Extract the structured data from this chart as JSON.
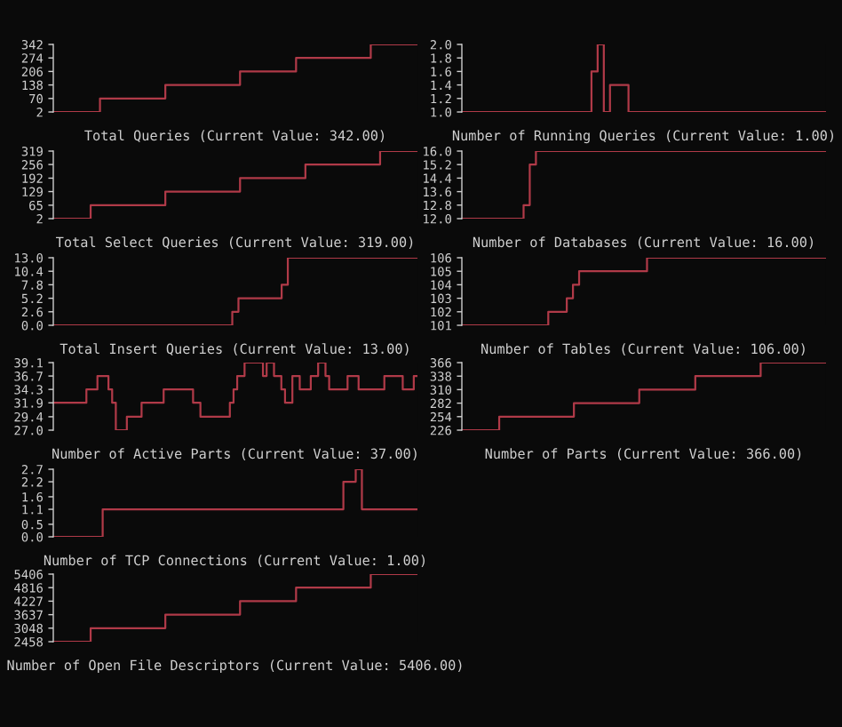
{
  "chart_data": [
    {
      "type": "step",
      "title": "Total Queries (Current Value: 342.00)",
      "color": "#b03a48",
      "tick_labels": "y",
      "ylim": [
        2,
        342
      ],
      "yticks": [
        2,
        70,
        138,
        206,
        274,
        342
      ],
      "categories": [
        null,
        null,
        null,
        null,
        null,
        null,
        null,
        null,
        null,
        null,
        null,
        null,
        null,
        null,
        null,
        null,
        null,
        null,
        null,
        null,
        null,
        null,
        null,
        null,
        null,
        null,
        null,
        null,
        null,
        null,
        null,
        null,
        null,
        null,
        null,
        null,
        null,
        null,
        null,
        null
      ],
      "values": [
        2,
        2,
        2,
        2,
        2,
        70,
        70,
        70,
        70,
        70,
        70,
        70,
        138,
        138,
        138,
        138,
        138,
        138,
        138,
        138,
        206,
        206,
        206,
        206,
        206,
        206,
        274,
        274,
        274,
        274,
        274,
        274,
        274,
        274,
        342,
        342,
        342,
        342,
        342,
        342
      ]
    },
    {
      "type": "step",
      "title": "Number of Running Queries (Current Value: 1.00)",
      "color": "#b03a48",
      "tick_labels": "y",
      "ylim": [
        1,
        2
      ],
      "yticks": [
        {
          "value": 1,
          "label": "1.0"
        },
        {
          "value": 1.2,
          "label": "1.2"
        },
        {
          "value": 1.4,
          "label": "1.4"
        },
        {
          "value": 1.6,
          "label": "1.6"
        },
        {
          "value": 1.8,
          "label": "1.8"
        },
        {
          "value": 2,
          "label": "2.0"
        }
      ],
      "categories": [
        null,
        null,
        null,
        null,
        null,
        null,
        null,
        null,
        null,
        null,
        null,
        null,
        null,
        null,
        null,
        null,
        null,
        null,
        null,
        null,
        null,
        null,
        null,
        null,
        null,
        null,
        null,
        null,
        null,
        null,
        null,
        null,
        null,
        null,
        null,
        null,
        null,
        null,
        null,
        null,
        null,
        null,
        null,
        null,
        null,
        null,
        null,
        null,
        null,
        null,
        null,
        null,
        null,
        null,
        null,
        null,
        null,
        null,
        null,
        null
      ],
      "values": [
        1,
        1,
        1,
        1,
        1,
        1,
        1,
        1,
        1,
        1,
        1,
        1,
        1,
        1,
        1,
        1,
        1,
        1,
        1,
        1,
        1,
        1.6,
        2,
        1,
        1.4,
        1.4,
        1.4,
        1,
        1,
        1,
        1,
        1,
        1,
        1,
        1,
        1,
        1,
        1,
        1,
        1,
        1,
        1,
        1,
        1,
        1,
        1,
        1,
        1,
        1,
        1,
        1,
        1,
        1,
        1,
        1,
        1,
        1,
        1,
        1,
        1
      ]
    },
    {
      "type": "step",
      "title": "Total Select Queries (Current Value: 319.00)",
      "color": "#b03a48",
      "tick_labels": "y",
      "ylim": [
        2,
        319
      ],
      "yticks": [
        2,
        65,
        129,
        192,
        256,
        319
      ],
      "categories": [
        null,
        null,
        null,
        null,
        null,
        null,
        null,
        null,
        null,
        null,
        null,
        null,
        null,
        null,
        null,
        null,
        null,
        null,
        null,
        null,
        null,
        null,
        null,
        null,
        null,
        null,
        null,
        null,
        null,
        null,
        null,
        null,
        null,
        null,
        null,
        null,
        null,
        null,
        null,
        null
      ],
      "values": [
        2,
        2,
        2,
        2,
        65,
        65,
        65,
        65,
        65,
        65,
        65,
        65,
        129,
        129,
        129,
        129,
        129,
        129,
        129,
        129,
        192,
        192,
        192,
        192,
        192,
        192,
        192,
        256,
        256,
        256,
        256,
        256,
        256,
        256,
        256,
        319,
        319,
        319,
        319,
        319
      ]
    },
    {
      "type": "step",
      "title": "Number of Databases (Current Value: 16.00)",
      "color": "#b03a48",
      "tick_labels": "y",
      "ylim": [
        12,
        16
      ],
      "yticks": [
        {
          "value": 12,
          "label": "12.0"
        },
        {
          "value": 12.8,
          "label": "12.8"
        },
        {
          "value": 13.6,
          "label": "13.6"
        },
        {
          "value": 14.4,
          "label": "14.4"
        },
        {
          "value": 15.2,
          "label": "15.2"
        },
        {
          "value": 16,
          "label": "16.0"
        }
      ],
      "categories": [
        null,
        null,
        null,
        null,
        null,
        null,
        null,
        null,
        null,
        null,
        null,
        null,
        null,
        null,
        null,
        null,
        null,
        null,
        null,
        null,
        null,
        null,
        null,
        null,
        null,
        null,
        null,
        null,
        null,
        null,
        null,
        null,
        null,
        null,
        null,
        null,
        null,
        null,
        null,
        null,
        null,
        null,
        null,
        null,
        null,
        null,
        null,
        null,
        null,
        null,
        null,
        null,
        null,
        null,
        null,
        null,
        null,
        null,
        null,
        null
      ],
      "values": [
        12,
        12,
        12,
        12,
        12,
        12,
        12,
        12,
        12,
        12,
        12.8,
        15.2,
        16,
        16,
        16,
        16,
        16,
        16,
        16,
        16,
        16,
        16,
        16,
        16,
        16,
        16,
        16,
        16,
        16,
        16,
        16,
        16,
        16,
        16,
        16,
        16,
        16,
        16,
        16,
        16,
        16,
        16,
        16,
        16,
        16,
        16,
        16,
        16,
        16,
        16,
        16,
        16,
        16,
        16,
        16,
        16,
        16,
        16,
        16,
        16
      ]
    },
    {
      "type": "step",
      "title": "Total Insert Queries (Current Value: 13.00)",
      "color": "#b03a48",
      "tick_labels": "y",
      "ylim": [
        0,
        13
      ],
      "yticks": [
        {
          "value": 0,
          "label": "0.0"
        },
        {
          "value": 2.6,
          "label": "2.6"
        },
        {
          "value": 5.2,
          "label": "5.2"
        },
        {
          "value": 7.8,
          "label": "7.8"
        },
        {
          "value": 10.4,
          "label": "10.4"
        },
        {
          "value": 13,
          "label": "13.0"
        }
      ],
      "categories": [
        null,
        null,
        null,
        null,
        null,
        null,
        null,
        null,
        null,
        null,
        null,
        null,
        null,
        null,
        null,
        null,
        null,
        null,
        null,
        null,
        null,
        null,
        null,
        null,
        null,
        null,
        null,
        null,
        null,
        null,
        null,
        null,
        null,
        null,
        null,
        null,
        null,
        null,
        null,
        null,
        null,
        null,
        null,
        null,
        null,
        null,
        null,
        null,
        null,
        null,
        null,
        null,
        null,
        null,
        null,
        null,
        null,
        null,
        null,
        null
      ],
      "values": [
        0,
        0,
        0,
        0,
        0,
        0,
        0,
        0,
        0,
        0,
        0,
        0,
        0,
        0,
        0,
        0,
        0,
        0,
        0,
        0,
        0,
        0,
        0,
        0,
        0,
        0,
        0,
        0,
        0,
        2.6,
        5.2,
        5.2,
        5.2,
        5.2,
        5.2,
        5.2,
        5.2,
        7.8,
        13,
        13,
        13,
        13,
        13,
        13,
        13,
        13,
        13,
        13,
        13,
        13,
        13,
        13,
        13,
        13,
        13,
        13,
        13,
        13,
        13,
        13
      ]
    },
    {
      "type": "step",
      "title": "Number of Tables (Current Value: 106.00)",
      "color": "#b03a48",
      "tick_labels": "y",
      "ylim": [
        101,
        106
      ],
      "yticks": [
        101,
        102,
        103,
        104,
        105,
        106
      ],
      "categories": [
        null,
        null,
        null,
        null,
        null,
        null,
        null,
        null,
        null,
        null,
        null,
        null,
        null,
        null,
        null,
        null,
        null,
        null,
        null,
        null,
        null,
        null,
        null,
        null,
        null,
        null,
        null,
        null,
        null,
        null,
        null,
        null,
        null,
        null,
        null,
        null,
        null,
        null,
        null,
        null,
        null,
        null,
        null,
        null,
        null,
        null,
        null,
        null,
        null,
        null,
        null,
        null,
        null,
        null,
        null,
        null,
        null,
        null,
        null,
        null
      ],
      "values": [
        101,
        101,
        101,
        101,
        101,
        101,
        101,
        101,
        101,
        101,
        101,
        101,
        101,
        101,
        102,
        102,
        102,
        103,
        104,
        105,
        105,
        105,
        105,
        105,
        105,
        105,
        105,
        105,
        105,
        105,
        106,
        106,
        106,
        106,
        106,
        106,
        106,
        106,
        106,
        106,
        106,
        106,
        106,
        106,
        106,
        106,
        106,
        106,
        106,
        106,
        106,
        106,
        106,
        106,
        106,
        106,
        106,
        106,
        106,
        106
      ]
    },
    {
      "type": "step",
      "title": "Number of Active Parts (Current Value: 37.00)",
      "color": "#b03a48",
      "tick_labels": "y",
      "ylim": [
        27,
        39.1
      ],
      "yticks": [
        {
          "value": 27,
          "label": "27.0"
        },
        29.4,
        31.9,
        34.3,
        36.7,
        39.1
      ],
      "categories": [
        null,
        null,
        null,
        null,
        null,
        null,
        null,
        null,
        null,
        null,
        null,
        null,
        null,
        null,
        null,
        null,
        null,
        null,
        null,
        null,
        null,
        null,
        null,
        null,
        null,
        null,
        null,
        null,
        null,
        null,
        null,
        null,
        null,
        null,
        null,
        null,
        null,
        null,
        null,
        null,
        null,
        null,
        null,
        null,
        null,
        null,
        null,
        null,
        null,
        null,
        null,
        null,
        null,
        null,
        null,
        null,
        null,
        null,
        null,
        null,
        null,
        null,
        null,
        null,
        null,
        null,
        null,
        null,
        null,
        null,
        null,
        null,
        null,
        null,
        null,
        null,
        null,
        null,
        null,
        null,
        null,
        null,
        null,
        null,
        null,
        null,
        null,
        null,
        null,
        null,
        null,
        null,
        null,
        null,
        null,
        null,
        null,
        null,
        null,
        null
      ],
      "values": [
        31.9,
        31.9,
        31.9,
        31.9,
        31.9,
        31.9,
        31.9,
        31.9,
        31.9,
        34.3,
        34.3,
        34.3,
        36.7,
        36.7,
        36.7,
        34.3,
        31.9,
        27,
        27,
        27,
        29.4,
        29.4,
        29.4,
        29.4,
        31.9,
        31.9,
        31.9,
        31.9,
        31.9,
        31.9,
        34.3,
        34.3,
        34.3,
        34.3,
        34.3,
        34.3,
        34.3,
        34.3,
        31.9,
        31.9,
        29.4,
        29.4,
        29.4,
        29.4,
        29.4,
        29.4,
        29.4,
        29.4,
        31.9,
        34.3,
        36.7,
        36.7,
        39.1,
        39.1,
        39.1,
        39.1,
        39.1,
        36.7,
        39.1,
        39.1,
        36.7,
        36.7,
        34.3,
        31.9,
        31.9,
        36.7,
        36.7,
        34.3,
        34.3,
        34.3,
        36.7,
        36.7,
        39.1,
        39.1,
        36.7,
        34.3,
        34.3,
        34.3,
        34.3,
        34.3,
        36.7,
        36.7,
        36.7,
        34.3,
        34.3,
        34.3,
        34.3,
        34.3,
        34.3,
        34.3,
        36.7,
        36.7,
        36.7,
        36.7,
        36.7,
        34.3,
        34.3,
        34.3,
        36.7,
        36.7
      ]
    },
    {
      "type": "step",
      "title": "Number of Parts (Current Value: 366.00)",
      "color": "#b03a48",
      "tick_labels": "y",
      "ylim": [
        226,
        366
      ],
      "yticks": [
        226,
        254,
        282,
        310,
        338,
        366
      ],
      "categories": [
        null,
        null,
        null,
        null,
        null,
        null,
        null,
        null,
        null,
        null,
        null,
        null,
        null,
        null,
        null,
        null,
        null,
        null,
        null,
        null,
        null,
        null,
        null,
        null,
        null,
        null,
        null,
        null,
        null,
        null,
        null,
        null,
        null,
        null,
        null,
        null,
        null,
        null,
        null,
        null
      ],
      "values": [
        226,
        226,
        226,
        226,
        254,
        254,
        254,
        254,
        254,
        254,
        254,
        254,
        282,
        282,
        282,
        282,
        282,
        282,
        282,
        310,
        310,
        310,
        310,
        310,
        310,
        338,
        338,
        338,
        338,
        338,
        338,
        338,
        366,
        366,
        366,
        366,
        366,
        366,
        366,
        366
      ]
    },
    {
      "type": "step",
      "title": "Number of TCP Connections (Current Value: 1.00)",
      "color": "#b03a48",
      "tick_labels": "y",
      "ylim": [
        0,
        2.7
      ],
      "yticks": [
        {
          "value": 0,
          "label": "0.0"
        },
        0.5,
        1.1,
        1.6,
        2.2,
        2.7
      ],
      "categories": [
        null,
        null,
        null,
        null,
        null,
        null,
        null,
        null,
        null,
        null,
        null,
        null,
        null,
        null,
        null,
        null,
        null,
        null,
        null,
        null,
        null,
        null,
        null,
        null,
        null,
        null,
        null,
        null,
        null,
        null,
        null,
        null,
        null,
        null,
        null,
        null,
        null,
        null,
        null,
        null,
        null,
        null,
        null,
        null,
        null,
        null,
        null,
        null,
        null,
        null,
        null,
        null,
        null,
        null,
        null,
        null,
        null,
        null,
        null,
        null
      ],
      "values": [
        0,
        0,
        0,
        0,
        0,
        0,
        0,
        0,
        1.1,
        1.1,
        1.1,
        1.1,
        1.1,
        1.1,
        1.1,
        1.1,
        1.1,
        1.1,
        1.1,
        1.1,
        1.1,
        1.1,
        1.1,
        1.1,
        1.1,
        1.1,
        1.1,
        1.1,
        1.1,
        1.1,
        1.1,
        1.1,
        1.1,
        1.1,
        1.1,
        1.1,
        1.1,
        1.1,
        1.1,
        1.1,
        1.1,
        1.1,
        1.1,
        1.1,
        1.1,
        1.1,
        1.1,
        2.2,
        2.2,
        2.7,
        1.1,
        1.1,
        1.1,
        1.1,
        1.1,
        1.1,
        1.1,
        1.1,
        1.1,
        1.1
      ]
    },
    {
      "type": "step",
      "title": "Number of Open File Descriptors (Current Value: 5406.00)",
      "color": "#b03a48",
      "tick_labels": "y",
      "ylim": [
        2458,
        5406
      ],
      "yticks": [
        2458,
        3048,
        3637,
        4227,
        4816,
        5406
      ],
      "categories": [
        null,
        null,
        null,
        null,
        null,
        null,
        null,
        null,
        null,
        null,
        null,
        null,
        null,
        null,
        null,
        null,
        null,
        null,
        null,
        null,
        null,
        null,
        null,
        null,
        null,
        null,
        null,
        null,
        null,
        null,
        null,
        null,
        null,
        null,
        null,
        null,
        null,
        null,
        null,
        null
      ],
      "values": [
        2458,
        2458,
        2458,
        2458,
        3048,
        3048,
        3048,
        3048,
        3048,
        3048,
        3048,
        3048,
        3637,
        3637,
        3637,
        3637,
        3637,
        3637,
        3637,
        3637,
        4227,
        4227,
        4227,
        4227,
        4227,
        4227,
        4816,
        4816,
        4816,
        4816,
        4816,
        4816,
        4816,
        4816,
        5406,
        5406,
        5406,
        5406,
        5406,
        5406
      ]
    }
  ]
}
